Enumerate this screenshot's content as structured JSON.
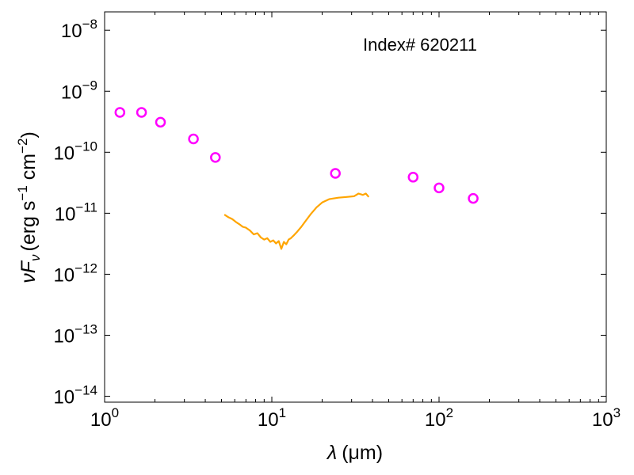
{
  "chart_data": {
    "type": "scatter",
    "annotation": "Index# 620211",
    "xlabel": {
      "symbol": "λ",
      "unit": "(μm)"
    },
    "ylabel": {
      "flux": "νF",
      "sub": "ν",
      "units_prefix": "(erg s",
      "exp1": "−1",
      "mid": " cm",
      "exp2": "−2",
      "close": ")"
    },
    "xscale": "log",
    "yscale": "log",
    "xlim": [
      1,
      1000
    ],
    "ylim": [
      8e-15,
      2e-08
    ],
    "x_tick_labels": [
      {
        "base": "10",
        "exp": "0",
        "value": 1
      },
      {
        "base": "10",
        "exp": "1",
        "value": 10
      },
      {
        "base": "10",
        "exp": "2",
        "value": 100
      },
      {
        "base": "10",
        "exp": "3",
        "value": 1000
      }
    ],
    "y_tick_labels": [
      {
        "base": "10",
        "exp": "−8",
        "value": 1e-08
      },
      {
        "base": "10",
        "exp": "−9",
        "value": 1e-09
      },
      {
        "base": "10",
        "exp": "−10",
        "value": 1e-10
      },
      {
        "base": "10",
        "exp": "−11",
        "value": 1e-11
      },
      {
        "base": "10",
        "exp": "−12",
        "value": 1e-12
      },
      {
        "base": "10",
        "exp": "−13",
        "value": 1e-13
      },
      {
        "base": "10",
        "exp": "−14",
        "value": 1e-14
      }
    ],
    "grid": false,
    "series": [
      {
        "kind": "scatter",
        "marker": "open-circle",
        "color": "#ff00ff",
        "points": [
          {
            "x": 1.235,
            "y": 4.5e-10
          },
          {
            "x": 1.662,
            "y": 4.5e-10
          },
          {
            "x": 2.159,
            "y": 3.1e-10
          },
          {
            "x": 3.4,
            "y": 1.65e-10
          },
          {
            "x": 4.6,
            "y": 8.2e-11
          },
          {
            "x": 24.0,
            "y": 4.5e-11
          },
          {
            "x": 70.0,
            "y": 3.9e-11
          },
          {
            "x": 100.0,
            "y": 2.6e-11
          },
          {
            "x": 160.0,
            "y": 1.75e-11
          }
        ]
      },
      {
        "kind": "line",
        "color": "#ffa500",
        "points": [
          {
            "x": 5.2,
            "y": 9.5e-12
          },
          {
            "x": 5.5,
            "y": 8.6e-12
          },
          {
            "x": 5.8,
            "y": 8e-12
          },
          {
            "x": 6.1,
            "y": 7.2e-12
          },
          {
            "x": 6.4,
            "y": 6.6e-12
          },
          {
            "x": 6.7,
            "y": 6e-12
          },
          {
            "x": 7.0,
            "y": 5.8e-12
          },
          {
            "x": 7.4,
            "y": 5.2e-12
          },
          {
            "x": 7.8,
            "y": 4.5e-12
          },
          {
            "x": 8.2,
            "y": 4.7e-12
          },
          {
            "x": 8.6,
            "y": 4e-12
          },
          {
            "x": 9.0,
            "y": 3.7e-12
          },
          {
            "x": 9.4,
            "y": 3.9e-12
          },
          {
            "x": 9.8,
            "y": 3.4e-12
          },
          {
            "x": 10.2,
            "y": 3.6e-12
          },
          {
            "x": 10.6,
            "y": 3.2e-12
          },
          {
            "x": 11.0,
            "y": 3.5e-12
          },
          {
            "x": 11.4,
            "y": 2.6e-12
          },
          {
            "x": 11.8,
            "y": 3.4e-12
          },
          {
            "x": 12.2,
            "y": 3.1e-12
          },
          {
            "x": 12.6,
            "y": 3.7e-12
          },
          {
            "x": 13.0,
            "y": 3.9e-12
          },
          {
            "x": 13.6,
            "y": 4.4e-12
          },
          {
            "x": 14.2,
            "y": 5e-12
          },
          {
            "x": 15.0,
            "y": 6e-12
          },
          {
            "x": 16.0,
            "y": 7.6e-12
          },
          {
            "x": 17.0,
            "y": 9.5e-12
          },
          {
            "x": 18.5,
            "y": 1.25e-11
          },
          {
            "x": 20.0,
            "y": 1.5e-11
          },
          {
            "x": 22.0,
            "y": 1.7e-11
          },
          {
            "x": 25.0,
            "y": 1.8e-11
          },
          {
            "x": 28.0,
            "y": 1.85e-11
          },
          {
            "x": 31.0,
            "y": 1.9e-11
          },
          {
            "x": 33.0,
            "y": 2.1e-11
          },
          {
            "x": 35.0,
            "y": 2e-11
          },
          {
            "x": 36.5,
            "y": 2.1e-11
          },
          {
            "x": 38.0,
            "y": 1.85e-11
          }
        ]
      }
    ]
  }
}
